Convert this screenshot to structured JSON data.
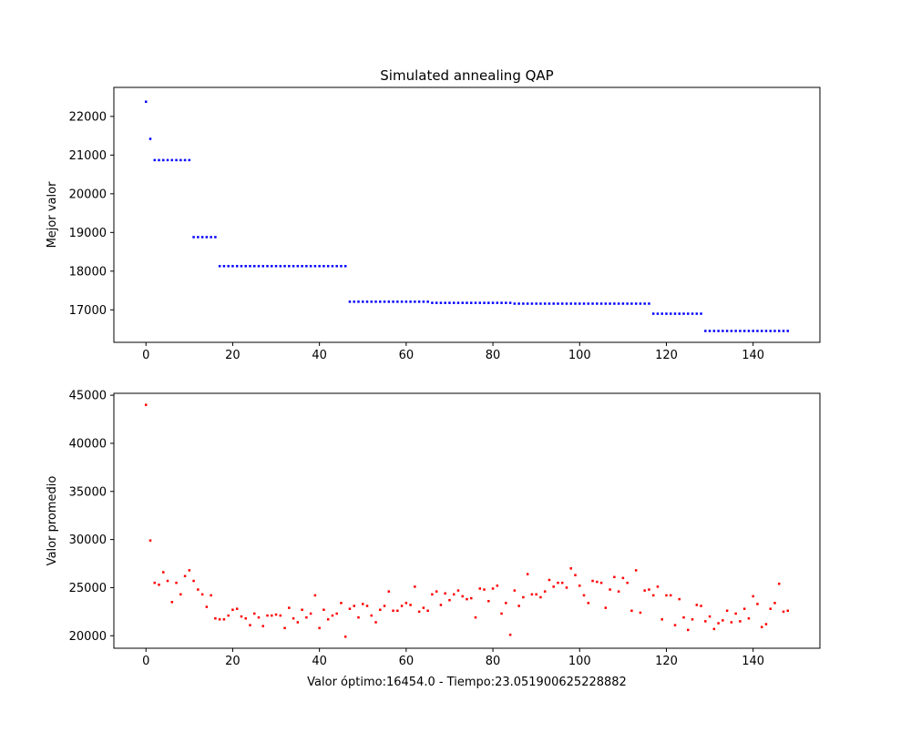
{
  "chart_data": [
    {
      "type": "scatter",
      "title": "Simulated annealing QAP",
      "xlabel": "",
      "ylabel": "Mejor valor",
      "xlim": [
        -7.4,
        155.4
      ],
      "ylim": [
        16160,
        22750
      ],
      "xticks": [
        0,
        20,
        40,
        60,
        80,
        100,
        120,
        140
      ],
      "yticks": [
        17000,
        18000,
        19000,
        20000,
        21000,
        22000
      ],
      "grid": false,
      "marker_color": "#0000ff",
      "segments": [
        {
          "x_start": 0,
          "x_end": 0,
          "y": 22380
        },
        {
          "x_start": 1,
          "x_end": 1,
          "y": 21420
        },
        {
          "x_start": 2,
          "x_end": 10,
          "y": 20870
        },
        {
          "x_start": 11,
          "x_end": 16,
          "y": 18880
        },
        {
          "x_start": 17,
          "x_end": 46,
          "y": 18130
        },
        {
          "x_start": 47,
          "x_end": 65,
          "y": 17210
        },
        {
          "x_start": 66,
          "x_end": 84,
          "y": 17180
        },
        {
          "x_start": 85,
          "x_end": 116,
          "y": 17160
        },
        {
          "x_start": 117,
          "x_end": 128,
          "y": 16900
        },
        {
          "x_start": 129,
          "x_end": 148,
          "y": 16454
        }
      ]
    },
    {
      "type": "scatter",
      "title": "",
      "xlabel": "Valor óptimo:16454.0 - Tiempo:23.051900625228882",
      "ylabel": "Valor promedio",
      "xlim": [
        -7.4,
        155.4
      ],
      "ylim": [
        18700,
        45200
      ],
      "xticks": [
        0,
        20,
        40,
        60,
        80,
        100,
        120,
        140
      ],
      "yticks": [
        20000,
        25000,
        30000,
        35000,
        40000,
        45000
      ],
      "grid": false,
      "marker_color": "#ff0000",
      "x_start": 0,
      "values": [
        44000,
        29900,
        25500,
        25300,
        26600,
        25700,
        23500,
        25500,
        24300,
        26200,
        26800,
        25700,
        24800,
        24300,
        23000,
        24200,
        21800,
        21700,
        21700,
        22100,
        22700,
        22800,
        22000,
        21800,
        21100,
        22300,
        21900,
        21000,
        22100,
        22100,
        22200,
        22100,
        20800,
        22900,
        21800,
        21400,
        22700,
        21900,
        22300,
        24200,
        20800,
        22700,
        21700,
        22100,
        22300,
        23400,
        19900,
        22800,
        23100,
        21900,
        23300,
        23100,
        22100,
        21400,
        22700,
        23100,
        24600,
        22600,
        22600,
        23100,
        23400,
        23200,
        25100,
        22500,
        22900,
        22600,
        24300,
        24600,
        23200,
        24400,
        23700,
        24300,
        24700,
        24100,
        23800,
        23900,
        21900,
        24900,
        24800,
        23600,
        24900,
        25200,
        22300,
        23400,
        20100,
        24700,
        23100,
        24000,
        26400,
        24300,
        24300,
        24000,
        24600,
        25800,
        25100,
        25500,
        25500,
        25000,
        27000,
        26300,
        25200,
        24200,
        23400,
        25700,
        25600,
        25500,
        22900,
        24800,
        26100,
        24600,
        26000,
        25500,
        22600,
        26800,
        22400,
        24700,
        24800,
        24200,
        25100,
        21700,
        24200,
        24200,
        21100,
        23800,
        21900,
        20600,
        21700,
        23200,
        23100,
        21500,
        22000,
        20700,
        21300,
        21600,
        22600,
        21400,
        22300,
        21500,
        22800,
        21800,
        24100,
        23300,
        20900,
        21200,
        22800,
        23400,
        25400,
        22500,
        22600
      ]
    }
  ]
}
